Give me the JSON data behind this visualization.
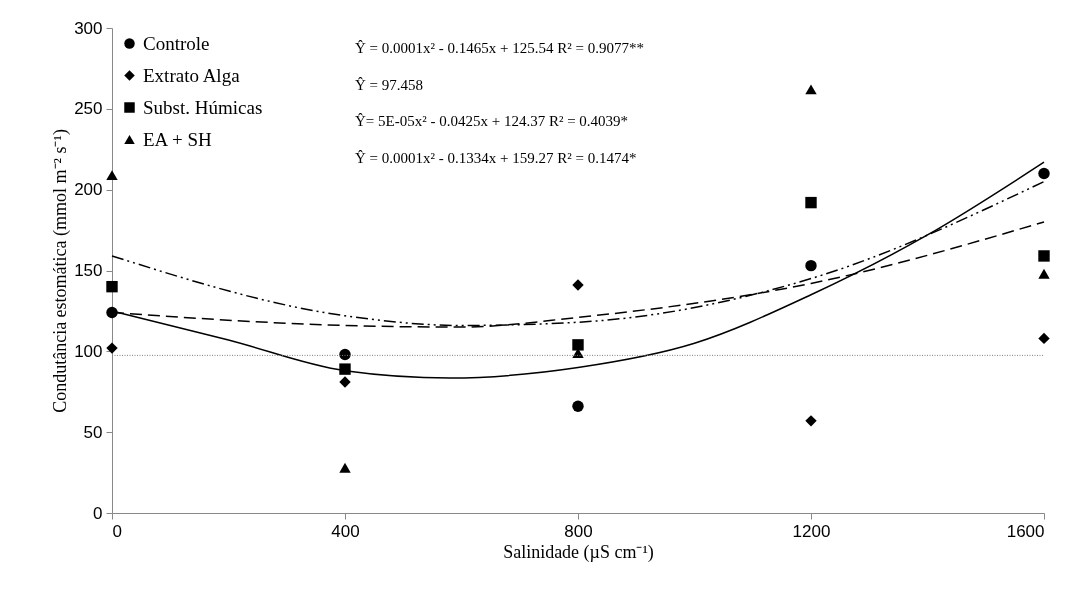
{
  "chart_data": {
    "type": "scatter",
    "xlabel": "Salinidade (µS cm⁻¹)",
    "ylabel": "Condutância estomática (mmol m⁻² s⁻¹)",
    "xlim": [
      0,
      1600
    ],
    "xticks": [
      0,
      400,
      800,
      1200,
      1600
    ],
    "ylim": [
      0,
      300
    ],
    "yticks": [
      0,
      50,
      100,
      150,
      200,
      250,
      300
    ],
    "grid": false,
    "legend": "top left",
    "series": [
      {
        "name": "Controle",
        "marker": "circle",
        "color": "#000000",
        "x": [
          0,
          400,
          800,
          1200,
          1600
        ],
        "values": [
          124,
          98,
          66,
          153,
          210
        ]
      },
      {
        "name": "Extrato Alga",
        "marker": "diamond",
        "color": "#000000",
        "x": [
          0,
          400,
          800,
          1200,
          1600
        ],
        "values": [
          102,
          81,
          141,
          57,
          108
        ]
      },
      {
        "name": "Subst. Húmicas",
        "marker": "square",
        "color": "#000000",
        "x": [
          0,
          400,
          800,
          1200,
          1600
        ],
        "values": [
          140,
          89,
          104,
          192,
          159
        ]
      },
      {
        "name": "EA + SH",
        "marker": "triangle",
        "color": "#000000",
        "x": [
          0,
          400,
          800,
          1200,
          1600
        ],
        "values": [
          209,
          28,
          99,
          262,
          148
        ]
      },
      {
        "type": "line",
        "line_style": "solid",
        "color": "#000000",
        "x": [
          0,
          200,
          400,
          580,
          800,
          1000,
          1200,
          1400,
          1600
        ],
        "values": [
          125,
          107,
          88,
          83.5,
          90,
          105,
          135,
          172,
          217
        ]
      },
      {
        "type": "line",
        "line_style": "dotted",
        "color": "#808080",
        "x": [
          0,
          1600
        ],
        "values": [
          97.5,
          97.5
        ]
      },
      {
        "type": "line",
        "line_style": "dashed",
        "color": "#000000",
        "x": [
          0,
          400,
          600,
          800,
          1200,
          1600
        ],
        "values": [
          124,
          116,
          115,
          121,
          142,
          180
        ]
      },
      {
        "type": "line",
        "line_style": "dashdot",
        "color": "#000000",
        "x": [
          0,
          400,
          600,
          800,
          1200,
          1600
        ],
        "values": [
          159,
          122,
          116,
          118,
          145,
          205
        ]
      }
    ],
    "annotations": [
      "Ŷ = 0.0001x² - 0.1465x + 125.54  R² = 0.9077**",
      "Ŷ = 97.458",
      "Ŷ= 5E-05x² - 0.0425x + 124.37  R² = 0.4039*",
      "Ŷ = 0.0001x² - 0.1334x + 159.27  R² = 0.1474*"
    ]
  }
}
